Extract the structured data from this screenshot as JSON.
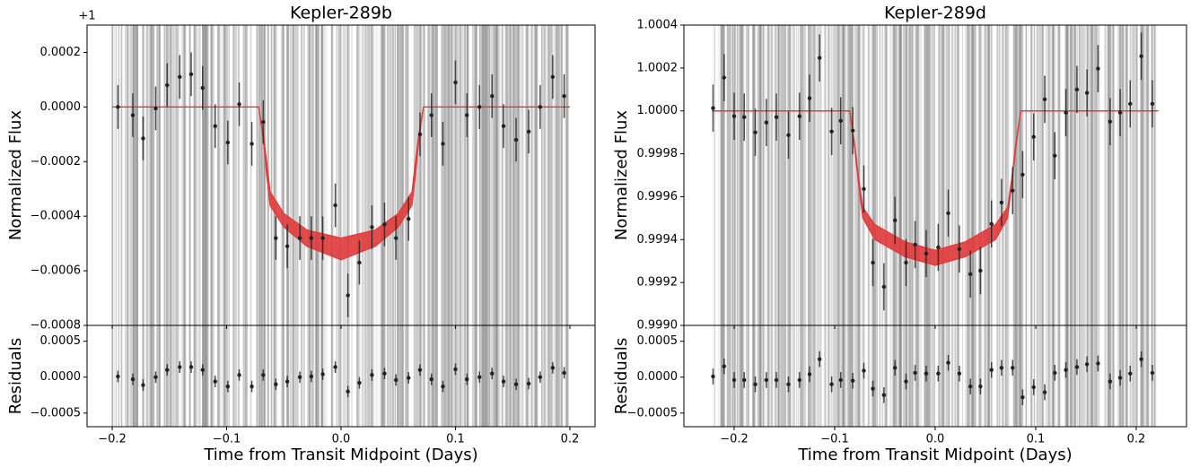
{
  "chart_data": [
    {
      "type": "errorbar",
      "title": "Kepler-289b",
      "offset_label": "+1",
      "ylabel": "Normalized Flux",
      "residual_ylabel": "Residuals",
      "xlabel": "Time from Transit Midpoint (Days)",
      "xlim": [
        -0.222,
        0.222
      ],
      "xticks": [
        {
          "value": -0.2,
          "label": "−0.2"
        },
        {
          "value": -0.1,
          "label": "−0.1"
        },
        {
          "value": 0,
          "label": "0.0"
        },
        0.1,
        0.2
      ],
      "ylim": [
        -0.0008,
        0.0003
      ],
      "yticks": [
        {
          "value": -0.0008,
          "label": "−0.0008"
        },
        {
          "value": -0.0006,
          "label": "−0.0006"
        },
        {
          "value": -0.0004,
          "label": "−0.0004"
        },
        {
          "value": -0.0002,
          "label": "−0.0002"
        },
        {
          "value": 0,
          "label": "0.0000"
        },
        0.0002
      ],
      "residual_ylim": [
        -0.00069,
        0.00072
      ],
      "residual_yticks": [
        {
          "value": -0.0005,
          "label": "−0.0005"
        },
        {
          "value": 0,
          "label": "0.0000"
        },
        0.0005
      ],
      "x": [
        -0.195,
        -0.182,
        -0.173,
        -0.162,
        -0.152,
        -0.141,
        -0.131,
        -0.121,
        -0.11,
        -0.099,
        -0.089,
        -0.078,
        -0.068,
        -0.057,
        -0.047,
        -0.036,
        -0.026,
        -0.016,
        -0.005,
        0.006,
        0.016,
        0.027,
        0.038,
        0.048,
        0.059,
        0.069,
        0.079,
        0.089,
        0.1,
        0.11,
        0.121,
        0.132,
        0.142,
        0.153,
        0.164,
        0.174,
        0.185,
        0.195
      ],
      "values": [
        0,
        -3e-05,
        -0.000115,
        -5e-06,
        8e-05,
        0.00011,
        0.00012,
        7e-05,
        -7e-05,
        -0.00013,
        1e-05,
        -0.000135,
        -5.5e-05,
        -0.00048,
        -0.00051,
        -0.00048,
        -0.00048,
        -0.00048,
        -0.00036,
        -0.00069,
        -0.00057,
        -0.00044,
        -0.00043,
        -0.00048,
        -0.00041,
        -0.0001,
        -3e-05,
        -0.000135,
        9e-05,
        -3e-05,
        0,
        4e-05,
        -7e-05,
        -0.00012,
        -9e-05,
        0,
        0.00011,
        4e-05
      ],
      "residuals": [
        1e-05,
        -3e-05,
        -0.00011,
        0,
        0.0001,
        0.00014,
        0.00014,
        0.0001,
        -6e-05,
        -0.00013,
        3e-05,
        -0.00013,
        3e-05,
        -0.0001,
        -6e-05,
        0,
        1e-05,
        4e-05,
        0.00014,
        -0.0002,
        -8e-05,
        3e-05,
        5e-05,
        -4e-05,
        -1e-05,
        0.0001,
        -3e-05,
        -0.00013,
        0.00011,
        -3e-05,
        0,
        5e-05,
        -6e-05,
        -0.0001,
        -9e-05,
        0,
        0.00013,
        6e-05
      ],
      "error": 8e-05,
      "model": {
        "color": "#e03a3a",
        "x": [
          -0.2,
          -0.072,
          -0.068,
          -0.065,
          -0.062,
          -0.05,
          -0.03,
          0,
          0.03,
          0.05,
          0.062,
          0.065,
          0.068,
          0.072,
          0.2
        ],
        "low": [
          0,
          0,
          -0.00012,
          -0.00025,
          -0.00036,
          -0.00044,
          -0.00051,
          -0.00056,
          -0.00051,
          -0.00044,
          -0.00036,
          -0.00025,
          -0.00012,
          0,
          0
        ],
        "high": [
          0,
          0,
          -0.0001,
          -0.0002,
          -0.00031,
          -0.00039,
          -0.00045,
          -0.00048,
          -0.00045,
          -0.00039,
          -0.00031,
          -0.0002,
          -0.0001,
          0,
          0
        ]
      }
    },
    {
      "type": "errorbar",
      "title": "Kepler-289d",
      "ylabel": "Normalized Flux",
      "residual_ylabel": "Residuals",
      "xlabel": "Time from Transit Midpoint (Days)",
      "xlim": [
        -0.25,
        0.25
      ],
      "xticks": [
        {
          "value": -0.2,
          "label": "−0.2"
        },
        {
          "value": -0.1,
          "label": "−0.1"
        },
        {
          "value": 0,
          "label": "0.0"
        },
        0.1,
        0.2
      ],
      "ylim": [
        0.999,
        1.0004
      ],
      "yticks": [
        {
          "value": 0.999,
          "label": "0.9990"
        },
        0.9992,
        0.9994,
        0.9996,
        0.9998,
        {
          "value": 1,
          "label": "1.0000"
        },
        1.0002,
        1.0004
      ],
      "residual_ylim": [
        -0.00069,
        0.00072
      ],
      "residual_yticks": [
        {
          "value": -0.0005,
          "label": "−0.0005"
        },
        {
          "value": 0,
          "label": "0.0000"
        },
        0.0005
      ],
      "x": [
        -0.221,
        -0.21,
        -0.2,
        -0.19,
        -0.179,
        -0.168,
        -0.158,
        -0.146,
        -0.135,
        -0.125,
        -0.115,
        -0.103,
        -0.094,
        -0.082,
        -0.071,
        -0.062,
        -0.051,
        -0.04,
        -0.029,
        -0.02,
        -0.009,
        0.003,
        0.013,
        0.024,
        0.035,
        0.045,
        0.056,
        0.066,
        0.077,
        0.087,
        0.098,
        0.109,
        0.119,
        0.13,
        0.141,
        0.151,
        0.162,
        0.174,
        0.184,
        0.194,
        0.205,
        0.216
      ],
      "values": [
        1.000013,
        1.000155,
        0.999975,
        0.999971,
        0.9999,
        0.999946,
        0.999971,
        0.999887,
        0.999975,
        1.000059,
        1.000247,
        0.999904,
        0.999954,
        0.999908,
        0.999636,
        0.999293,
        0.99918,
        0.99949,
        0.999293,
        0.999377,
        0.999335,
        0.999364,
        0.999523,
        0.999356,
        0.999239,
        0.999255,
        0.999473,
        0.999573,
        0.999628,
        0.999703,
        0.999879,
        1.000054,
        0.999791,
        0.999992,
        1.0001,
        1.000084,
        1.000197,
        0.99995,
        0.999992,
        1.000033,
        1.000255,
        1.000033
      ],
      "residuals": [
        1e-05,
        0.00015,
        -4e-05,
        -4e-05,
        -0.0001,
        -4e-05,
        -4e-05,
        -0.0001,
        -4e-05,
        4e-05,
        0.00025,
        -0.0001,
        -4e-05,
        -5e-05,
        9e-05,
        -0.00016,
        -0.00025,
        0.00013,
        -6e-05,
        6e-05,
        5e-05,
        5e-05,
        0.0002,
        5e-05,
        -0.00013,
        -0.00013,
        0.0001,
        0.00013,
        0.00013,
        -0.00028,
        -0.00014,
        -0.00021,
        6e-05,
        0.0001,
        0.00014,
        0.00018,
        0.00019,
        -6e-05,
        -1e-05,
        5e-05,
        0.00025,
        6e-05
      ],
      "error": 0.00011,
      "model": {
        "color": "#e03a3a",
        "x": [
          -0.222,
          -0.085,
          -0.08,
          -0.076,
          -0.072,
          -0.06,
          -0.03,
          0,
          0.03,
          0.06,
          0.072,
          0.076,
          0.08,
          0.085,
          0.222
        ],
        "low": [
          1,
          1,
          0.99982,
          0.99965,
          0.9995,
          0.9994,
          0.99932,
          0.99928,
          0.99932,
          0.9994,
          0.9995,
          0.99965,
          0.99982,
          1,
          1
        ],
        "high": [
          1,
          1,
          0.99984,
          0.99968,
          0.99955,
          0.99947,
          0.99939,
          0.99935,
          0.99939,
          0.99947,
          0.99955,
          0.99968,
          0.99984,
          1,
          1
        ]
      }
    }
  ]
}
